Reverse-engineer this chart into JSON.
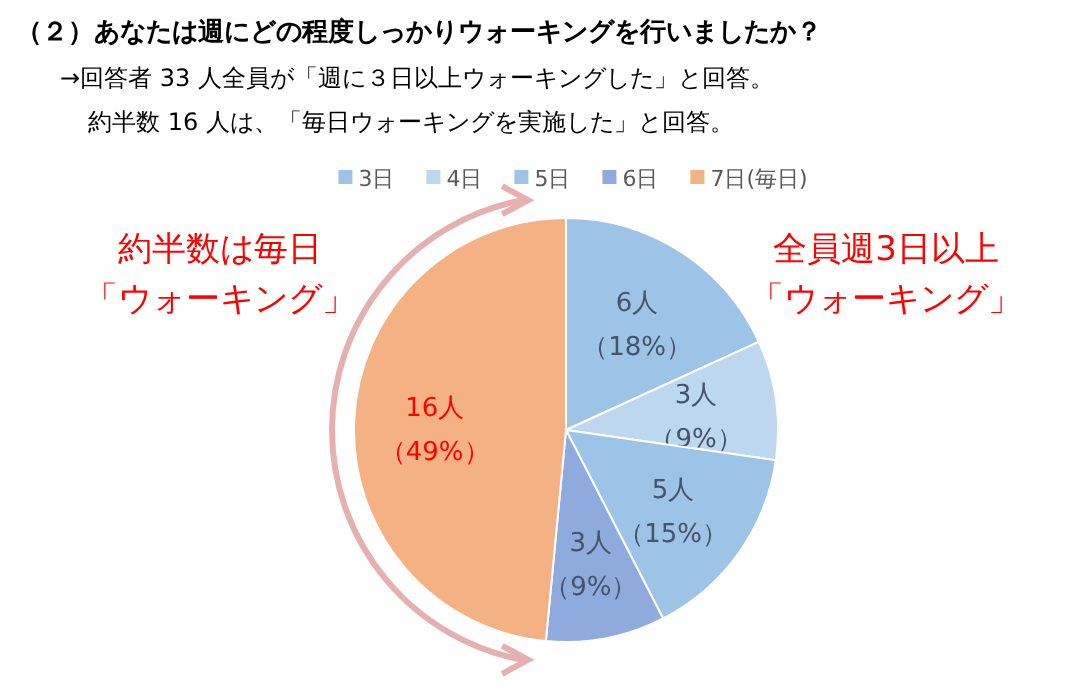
{
  "chart_data": {
    "type": "pie",
    "title": "（２）あなたは週にどの程度しっかりウォーキングを行いましたか？",
    "subtitle": "→回答者 33 人全員が「週に３日以上ウォーキングした」と回答。",
    "categories": [
      "3日",
      "4日",
      "5日",
      "6日",
      "7日(毎日)"
    ],
    "values": [
      6,
      3,
      5,
      3,
      16
    ],
    "colors": [
      "#9dc3e6",
      "#bdd7ee",
      "#9dc3e6",
      "#8faadc",
      "#f4b183"
    ],
    "value_labels": [
      "6人（18%）",
      "3人（9%）",
      "5人（15%）",
      "3人（9%）",
      "16人（49%）"
    ],
    "legend": "top",
    "annotations": [
      "約半数 16 人は、「毎日ウォーキングを実施した」と回答。",
      "約半数は毎日「ウォーキング」",
      "全員週3日以上「ウォーキング」"
    ]
  }
}
